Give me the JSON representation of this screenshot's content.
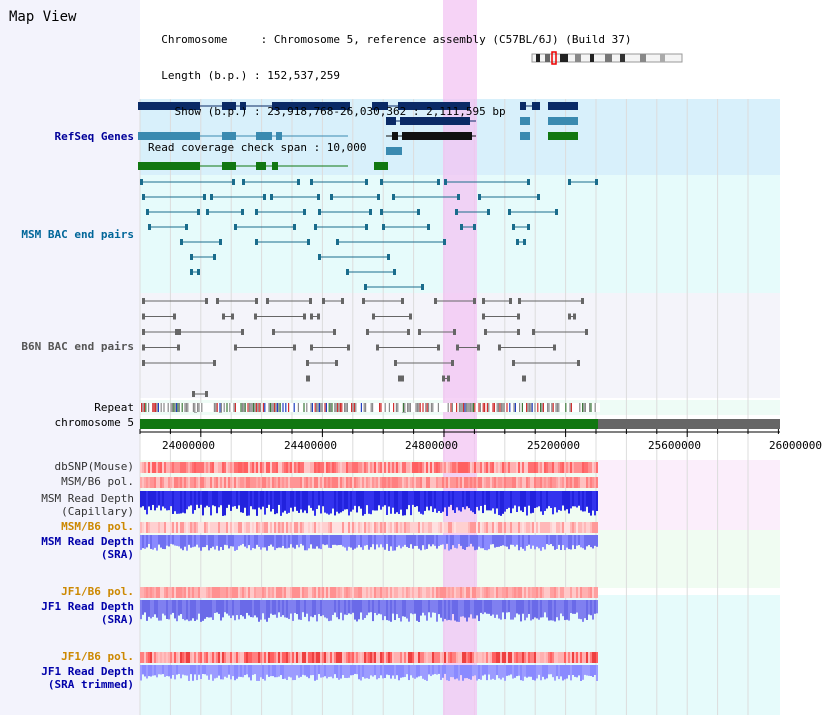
{
  "header": {
    "title": "Map View",
    "info_lines": [
      "  Chromosome     : Chromosome 5, reference assembly (C57BL/6J) (Build 37)",
      "  Length (b.p.) : 152,537,259",
      "    Show (b.p.) : 23,918,768-26,030,362 : 2,111,595 bp",
      "Read coverage check span : 10,000"
    ]
  },
  "tracks": {
    "refseq": {
      "label": "RefSeq Genes",
      "color": "#000099"
    },
    "msm_bac": {
      "label": "MSM BAC end pairs",
      "color": "#006699"
    },
    "b6n_bac": {
      "label": "B6N BAC end pairs",
      "color": "#555555"
    },
    "repeat": {
      "label": "Repeat"
    },
    "chromosome": {
      "label": "chromosome 5"
    },
    "dbsnp": {
      "label": "dbSNP(Mouse)"
    },
    "msm_b6_pol_1": {
      "label": "MSM/B6 pol."
    },
    "msm_read_depth_cap": {
      "label_1": "MSM Read Depth",
      "label_2": "(Capillary)"
    },
    "msm_b6_pol_2": {
      "label": "MSM/B6 pol.",
      "color": "#cc8800"
    },
    "msm_read_depth_sra": {
      "label_1": "MSM Read Depth",
      "label_2": "(SRA)"
    },
    "jf1_b6_pol_1": {
      "label": "JF1/B6 pol.",
      "color": "#cc8800"
    },
    "jf1_read_depth_sra": {
      "label_1": "JF1 Read Depth",
      "label_2": "(SRA)"
    },
    "jf1_b6_pol_2": {
      "label": "JF1/B6 pol.",
      "color": "#cc8800"
    },
    "jf1_read_depth_trim": {
      "label_1": "JF1 Read Depth",
      "label_2": "(SRA trimmed)"
    }
  },
  "ruler": {
    "ticks": [
      "24000000",
      "24400000",
      "24800000",
      "25200000",
      "25600000",
      "26000000"
    ]
  }
}
